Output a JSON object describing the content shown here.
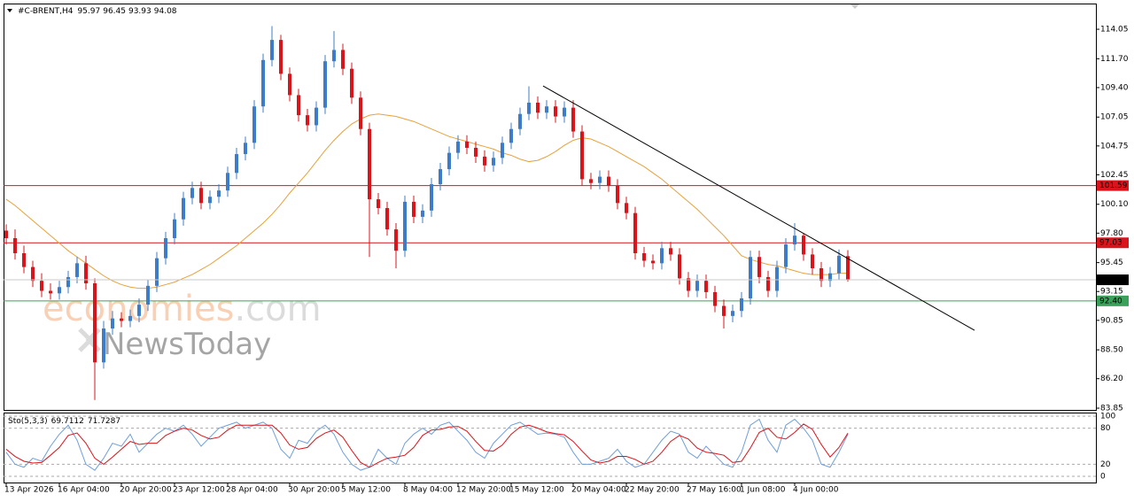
{
  "chart_data": {
    "type": "candlestick",
    "title": "#C-BRENT,H4",
    "ohlc_header": [
      95.97,
      96.45,
      93.93,
      94.08
    ],
    "categories": [
      "13 Apr 2026",
      null,
      null,
      null,
      null,
      null,
      "16 Apr 04:00",
      null,
      null,
      null,
      null,
      null,
      null,
      "20 Apr 20:00",
      null,
      null,
      null,
      null,
      null,
      "23 Apr 12:00",
      null,
      null,
      null,
      null,
      null,
      "28 Apr 04:00",
      null,
      null,
      null,
      null,
      null,
      null,
      "30 Apr 20:00",
      null,
      null,
      null,
      null,
      null,
      "5 May 12:00",
      null,
      null,
      null,
      null,
      null,
      null,
      "8 May 04:00",
      null,
      null,
      null,
      null,
      null,
      "12 May 20:00",
      null,
      null,
      null,
      null,
      null,
      "15 May 12:00",
      null,
      null,
      null,
      null,
      null,
      null,
      "20 May 04:00",
      null,
      null,
      null,
      null,
      null,
      "22 May 20:00",
      null,
      null,
      null,
      null,
      null,
      null,
      "27 May 16:00",
      null,
      null,
      null,
      null,
      null,
      "1 Jun 08:00",
      null,
      null,
      null,
      null,
      null,
      "4 Jun 00:00",
      null,
      null,
      null,
      null,
      null,
      null
    ],
    "open": [
      98.0,
      97.4,
      96.2,
      95.1,
      94.0,
      93.2,
      93.0,
      93.5,
      94.3,
      95.4,
      93.8,
      87.5,
      90.2,
      91.0,
      90.8,
      91.2,
      92.1,
      93.6,
      95.8,
      97.4,
      98.9,
      100.6,
      101.4,
      100.2,
      100.7,
      101.2,
      102.6,
      104.1,
      105.0,
      107.9,
      111.6,
      113.2,
      110.5,
      108.8,
      107.2,
      106.4,
      107.8,
      111.5,
      112.4,
      110.9,
      108.6,
      106.1,
      100.5,
      99.8,
      98.1,
      96.4,
      100.3,
      99.1,
      99.6,
      101.7,
      102.9,
      104.2,
      105.1,
      104.6,
      103.9,
      103.2,
      103.8,
      105.0,
      106.1,
      107.3,
      108.2,
      107.4,
      107.9,
      107.1,
      107.8,
      105.9,
      102.1,
      101.8,
      102.3,
      101.6,
      100.2,
      99.4,
      96.2,
      95.6,
      95.4,
      96.6,
      96.1,
      94.2,
      93.2,
      94.0,
      93.1,
      92.0,
      91.2,
      91.6,
      92.6,
      95.9,
      94.3,
      93.2,
      95.1,
      96.9,
      97.6,
      96.1,
      95.0,
      94.0,
      94.6,
      95.97
    ],
    "high": [
      98.5,
      98.1,
      96.8,
      95.6,
      94.6,
      93.8,
      94.0,
      94.8,
      95.9,
      96.0,
      94.2,
      90.8,
      91.6,
      91.5,
      91.7,
      92.6,
      94.1,
      96.3,
      97.9,
      99.4,
      101.1,
      101.9,
      101.9,
      101.2,
      101.7,
      103.1,
      104.6,
      105.5,
      108.4,
      112.1,
      114.3,
      113.6,
      111.0,
      109.3,
      107.7,
      108.3,
      112.0,
      113.9,
      112.9,
      111.4,
      109.1,
      106.6,
      101.0,
      100.3,
      98.6,
      100.8,
      100.8,
      100.1,
      102.2,
      103.4,
      104.7,
      105.6,
      105.6,
      105.1,
      104.4,
      104.3,
      105.5,
      106.6,
      107.8,
      109.5,
      108.7,
      108.4,
      108.4,
      108.3,
      108.4,
      106.4,
      102.6,
      102.8,
      102.8,
      102.1,
      100.7,
      99.9,
      96.7,
      96.1,
      97.1,
      97.1,
      96.6,
      94.7,
      94.5,
      94.5,
      93.6,
      92.5,
      92.1,
      93.1,
      96.4,
      96.4,
      94.8,
      95.6,
      97.4,
      98.6,
      97.8,
      96.6,
      95.5,
      95.1,
      96.5,
      96.45
    ],
    "low": [
      96.9,
      95.7,
      94.6,
      93.5,
      92.7,
      92.5,
      92.5,
      93.0,
      93.8,
      93.3,
      84.5,
      87.0,
      89.7,
      90.3,
      90.3,
      90.7,
      91.6,
      93.1,
      95.3,
      96.9,
      98.4,
      100.1,
      99.7,
      99.7,
      100.2,
      100.7,
      102.1,
      103.6,
      104.5,
      107.4,
      111.1,
      110.0,
      108.3,
      106.7,
      105.9,
      105.9,
      107.3,
      111.0,
      110.4,
      108.1,
      105.6,
      95.9,
      99.3,
      97.6,
      95.0,
      95.9,
      98.6,
      98.6,
      99.1,
      101.2,
      102.4,
      103.7,
      104.1,
      103.4,
      102.7,
      102.7,
      103.3,
      104.5,
      105.6,
      106.8,
      106.9,
      106.9,
      106.6,
      106.6,
      105.4,
      101.6,
      101.3,
      101.3,
      101.1,
      99.7,
      98.9,
      95.7,
      95.1,
      94.9,
      94.9,
      95.6,
      93.7,
      92.7,
      92.7,
      92.6,
      91.5,
      90.2,
      90.7,
      91.1,
      92.1,
      93.8,
      92.7,
      92.7,
      94.6,
      96.4,
      95.6,
      94.5,
      93.5,
      93.5,
      94.1,
      93.93
    ],
    "close": [
      97.4,
      96.2,
      95.1,
      94.0,
      93.2,
      93.0,
      93.5,
      94.3,
      95.4,
      93.8,
      87.5,
      90.2,
      91.0,
      90.8,
      91.2,
      92.1,
      93.6,
      95.8,
      97.4,
      98.9,
      100.6,
      101.4,
      100.2,
      100.7,
      101.2,
      102.6,
      104.1,
      105.0,
      107.9,
      111.6,
      113.2,
      110.5,
      108.8,
      107.2,
      106.4,
      107.8,
      111.5,
      112.4,
      110.9,
      108.6,
      106.1,
      100.5,
      99.8,
      98.1,
      96.4,
      100.3,
      99.1,
      99.6,
      101.7,
      102.9,
      104.2,
      105.1,
      104.6,
      103.9,
      103.2,
      103.8,
      105.0,
      106.1,
      107.3,
      108.2,
      107.4,
      107.9,
      107.1,
      107.8,
      105.9,
      102.1,
      101.8,
      102.3,
      101.6,
      100.2,
      99.4,
      96.2,
      95.6,
      95.4,
      96.6,
      96.1,
      94.2,
      93.2,
      94.0,
      93.1,
      92.0,
      91.2,
      91.6,
      92.6,
      95.9,
      94.3,
      93.2,
      95.1,
      96.9,
      97.6,
      96.1,
      95.0,
      94.0,
      94.6,
      96.0,
      94.08
    ],
    "up_color": "#3d7cc9",
    "down_color": "#d9141b",
    "ylim": [
      83.71,
      116.1
    ],
    "yticks": [
      114.05,
      {
        "value": 111.7,
        "label": "111.70"
      },
      {
        "value": 109.4,
        "label": "109.40"
      },
      107.05,
      104.75,
      102.45,
      {
        "value": 100.1,
        "label": "100.10"
      },
      {
        "value": 97.8,
        "label": "97.80"
      },
      95.45,
      93.15,
      90.85,
      {
        "value": 88.5,
        "label": "88.50"
      },
      {
        "value": 86.2,
        "label": "86.20"
      },
      83.85
    ],
    "ma": {
      "color": "#e8a13a",
      "values": [
        100.5,
        100.0,
        99.4,
        98.8,
        98.2,
        97.6,
        97.0,
        96.4,
        95.9,
        95.4,
        94.9,
        94.4,
        94.0,
        93.7,
        93.5,
        93.4,
        93.4,
        93.5,
        93.7,
        93.9,
        94.2,
        94.5,
        94.9,
        95.3,
        95.8,
        96.3,
        96.8,
        97.4,
        98.0,
        98.6,
        99.3,
        100.1,
        101.0,
        101.8,
        102.6,
        103.5,
        104.4,
        105.2,
        105.9,
        106.5,
        106.9,
        107.2,
        107.3,
        107.2,
        107.1,
        106.9,
        106.7,
        106.4,
        106.1,
        105.8,
        105.5,
        105.3,
        105.1,
        104.9,
        104.7,
        104.5,
        104.2,
        104.0,
        103.7,
        103.5,
        103.6,
        103.9,
        104.3,
        104.8,
        105.2,
        105.4,
        105.3,
        105.0,
        104.7,
        104.3,
        103.9,
        103.5,
        103.1,
        102.6,
        102.1,
        101.5,
        100.9,
        100.3,
        99.7,
        99.0,
        98.3,
        97.6,
        96.8,
        96.0,
        95.7,
        95.5,
        95.3,
        95.2,
        95.0,
        94.8,
        94.6,
        94.5,
        94.5,
        94.5,
        94.6,
        94.6
      ]
    },
    "levels": [
      {
        "value": 101.59,
        "color": "#d9141b"
      },
      {
        "value": 97.03,
        "color": "#d9141b"
      },
      {
        "value": 92.4,
        "label": "92.40",
        "color": "#3aa05a"
      }
    ],
    "last_color": "#c8c8c8",
    "trendline": {
      "x": [
        60.6,
        109.3
      ],
      "y": [
        109.53,
        90.06
      ],
      "color": "#000000"
    },
    "stochastic": {
      "type": "line",
      "title": "Sto(5,3,3)",
      "ylim": [
        -10.4,
        106
      ],
      "yticks": [
        100,
        80,
        20,
        0
      ],
      "series": [
        {
          "color": "#6f9fd8",
          "values": [
            40,
            20,
            15,
            30,
            25,
            50,
            70,
            85,
            60,
            20,
            10,
            30,
            55,
            50,
            70,
            40,
            55,
            70,
            80,
            75,
            85,
            70,
            50,
            65,
            80,
            85,
            90,
            80,
            85,
            90,
            80,
            45,
            30,
            60,
            55,
            75,
            85,
            70,
            40,
            20,
            10,
            15,
            45,
            30,
            20,
            55,
            70,
            80,
            70,
            85,
            90,
            75,
            60,
            40,
            30,
            55,
            70,
            85,
            90,
            80,
            70,
            72,
            70,
            65,
            40,
            20,
            20,
            25,
            30,
            45,
            25,
            15,
            20,
            40,
            60,
            75,
            70,
            40,
            30,
            50,
            35,
            20,
            15,
            40,
            85,
            95,
            60,
            40,
            85,
            95,
            80,
            60,
            20,
            15,
            40,
            69.7112
          ]
        },
        {
          "color": "#d9141b",
          "values": [
            45,
            33,
            25,
            22,
            23,
            35,
            48,
            68,
            72,
            55,
            30,
            20,
            32,
            45,
            58,
            53,
            55,
            55,
            68,
            75,
            80,
            77,
            68,
            62,
            65,
            77,
            85,
            85,
            85,
            85,
            85,
            72,
            52,
            45,
            48,
            63,
            72,
            77,
            65,
            43,
            23,
            15,
            23,
            30,
            32,
            35,
            48,
            68,
            77,
            78,
            82,
            83,
            75,
            58,
            43,
            42,
            52,
            70,
            82,
            85,
            80,
            74,
            71,
            69,
            58,
            42,
            27,
            22,
            25,
            33,
            33,
            28,
            20,
            25,
            40,
            58,
            68,
            62,
            47,
            40,
            38,
            35,
            23,
            25,
            47,
            73,
            80,
            65,
            62,
            73,
            87,
            78,
            53,
            32,
            48,
            71.7287
          ]
        }
      ]
    },
    "watermark": {
      "brand": "economies",
      "domain": ".com",
      "sub": "NewsToday"
    }
  }
}
